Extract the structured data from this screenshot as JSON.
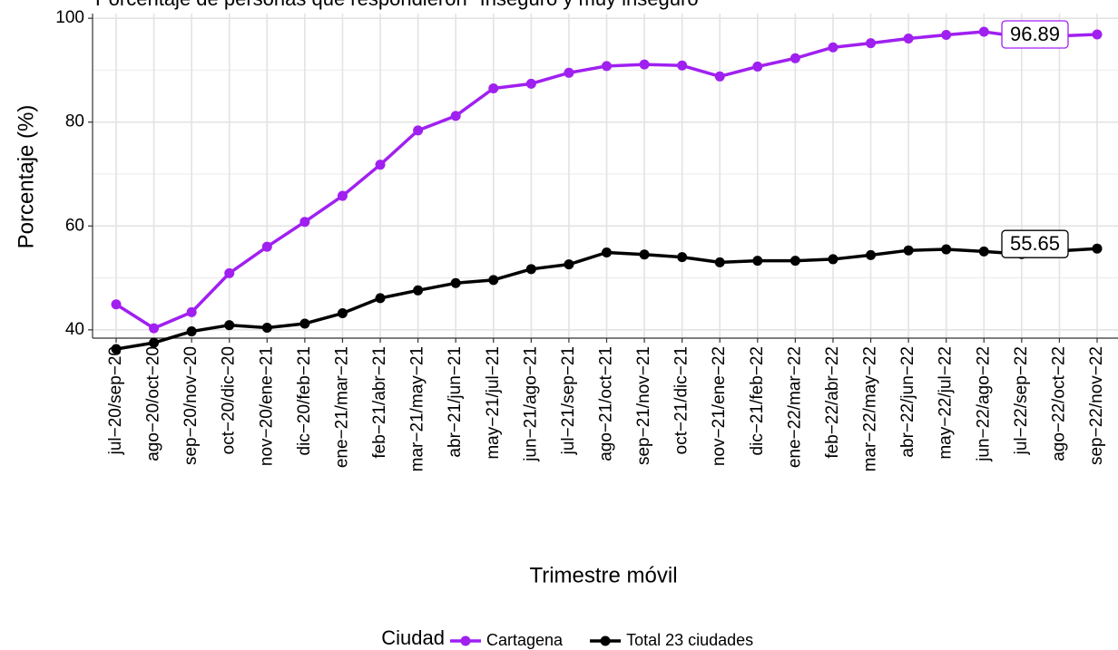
{
  "chart_data": {
    "type": "line",
    "title": "Porcentaje de personas que respondieron \"Inseguro y muy inseguro\"",
    "x_label": "Trimestre móvil",
    "y_label": "Porcentaje (%)",
    "categories": [
      "jul−20/sep−20",
      "ago−20/oct−20",
      "sep−20/nov−20",
      "oct−20/dic−20",
      "nov−20/ene−21",
      "dic−20/feb−21",
      "ene−21/mar−21",
      "feb−21/abr−21",
      "mar−21/may−21",
      "abr−21/jun−21",
      "may−21/jul−21",
      "jun−21/ago−21",
      "jul−21/sep−21",
      "ago−21/oct−21",
      "sep−21/nov−21",
      "oct−21/dic−21",
      "nov−21/ene−22",
      "dic−21/feb−22",
      "ene−22/mar−22",
      "feb−22/abr−22",
      "mar−22/may−22",
      "abr−22/jun−22",
      "may−22/jul−22",
      "jun−22/ago−22",
      "jul−22/sep−22",
      "ago−22/oct−22",
      "sep−22/nov−22"
    ],
    "series": [
      {
        "name": "Cartagena",
        "color": "#a020f0",
        "values": [
          44.9,
          40.3,
          43.4,
          50.9,
          56.0,
          60.8,
          65.8,
          71.8,
          78.4,
          81.2,
          86.5,
          87.4,
          89.5,
          90.8,
          91.1,
          90.9,
          88.8,
          90.7,
          92.3,
          94.4,
          95.2,
          96.1,
          96.8,
          97.4,
          96.4,
          96.6,
          96.89
        ]
      },
      {
        "name": "Total 23 ciudades",
        "color": "#000000",
        "values": [
          36.3,
          37.5,
          39.7,
          40.9,
          40.4,
          41.2,
          43.2,
          46.1,
          47.6,
          49.0,
          49.6,
          51.7,
          52.6,
          54.9,
          54.5,
          54.0,
          53.0,
          53.3,
          53.3,
          53.6,
          54.4,
          55.3,
          55.5,
          55.1,
          54.6,
          55.2,
          55.65
        ]
      }
    ],
    "legend_title": "Ciudad",
    "legend_position": "bottom",
    "ylim": [
      38.4,
      100.9
    ],
    "yticks": [
      40,
      60,
      80,
      100
    ],
    "yminorticks": [
      50,
      70,
      90
    ],
    "grid": true
  }
}
